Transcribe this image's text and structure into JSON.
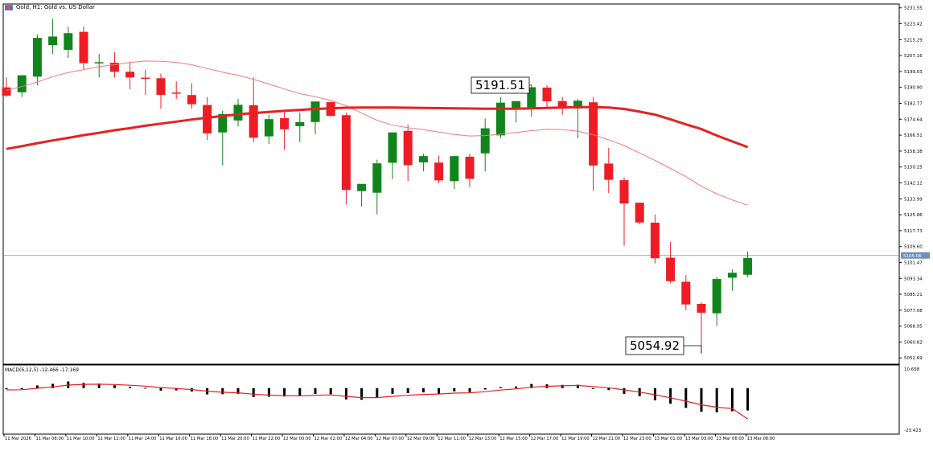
{
  "header": {
    "title": "Gold, H1: Gold vs. US Dollar"
  },
  "macd": {
    "title": "MACD(6,12,5) -12.466 -17.169",
    "axis_ticks": [
      "10.658",
      "-23.423"
    ]
  },
  "colors": {
    "bull": "#11851b",
    "bear": "#ee1c24",
    "ma_fast": "#e52222",
    "ma_slow": "#f07a7a",
    "macd_hist": "#000000",
    "macd_signal": "#e52222",
    "current_price_label_bg": "#6d8fb8"
  },
  "chart_data": [
    {
      "type": "candlestick",
      "title": "Gold, H1: Gold vs. US Dollar",
      "y_ticks": [
        "5231.55",
        "5223.42",
        "5215.29",
        "5207.16",
        "5199.03",
        "5190.90",
        "5182.77",
        "5174.64",
        "5166.51",
        "5158.38",
        "5150.25",
        "5142.12",
        "5133.99",
        "5125.86",
        "5117.73",
        "5109.60",
        "5101.47",
        "5093.34",
        "5085.21",
        "5077.08",
        "5068.95",
        "5060.82",
        "5052.69"
      ],
      "ylim": [
        5049.5,
        5233.5
      ],
      "current_price": "5105.06",
      "x_ticks": [
        "11 Mar 2026",
        "11 Mar 08:00",
        "11 Mar 10:00",
        "11 Mar 12:00",
        "11 Mar 14:00",
        "11 Mar 16:00",
        "11 Mar 18:00",
        "11 Mar 20:00",
        "11 Mar 22:00",
        "12 Mar 00:00",
        "12 Mar 02:00",
        "12 Mar 04:00",
        "12 Mar 07:00",
        "12 Mar 09:00",
        "12 Mar 11:00",
        "12 Mar 13:00",
        "12 Mar 15:00",
        "12 Mar 17:00",
        "12 Mar 19:00",
        "12 Mar 21:00",
        "12 Mar 23:00",
        "13 Mar 01:00",
        "13 Mar 03:00",
        "13 Mar 06:00",
        "13 Mar 08:00"
      ],
      "annotations": [
        {
          "label": "5191.51",
          "candle_index": 34
        },
        {
          "label": "5054.92",
          "candle_index": 45
        }
      ],
      "candles": [
        {
          "o": 5190.9,
          "h": 5196,
          "l": 5186,
          "c": 5186.7
        },
        {
          "o": 5188.4,
          "h": 5197,
          "l": 5186,
          "c": 5197.1
        },
        {
          "o": 5196.4,
          "h": 5218,
          "l": 5192,
          "c": 5216.2
        },
        {
          "o": 5212.5,
          "h": 5226,
          "l": 5208,
          "c": 5216.9
        },
        {
          "o": 5210.1,
          "h": 5222,
          "l": 5206,
          "c": 5218.6
        },
        {
          "o": 5219.3,
          "h": 5222,
          "l": 5200,
          "c": 5203.3
        },
        {
          "o": 5203.2,
          "h": 5208,
          "l": 5196,
          "c": 5203.8
        },
        {
          "o": 5203.5,
          "h": 5209,
          "l": 5196,
          "c": 5198.9
        },
        {
          "o": 5198.9,
          "h": 5204,
          "l": 5190,
          "c": 5196.0
        },
        {
          "o": 5195.9,
          "h": 5200,
          "l": 5187,
          "c": 5195.4
        },
        {
          "o": 5195.6,
          "h": 5198,
          "l": 5180,
          "c": 5187.1
        },
        {
          "o": 5188.3,
          "h": 5194,
          "l": 5185,
          "c": 5187.7
        },
        {
          "o": 5187.0,
          "h": 5193,
          "l": 5180,
          "c": 5182.3
        },
        {
          "o": 5181.9,
          "h": 5186,
          "l": 5164,
          "c": 5167.4
        },
        {
          "o": 5167.9,
          "h": 5179,
          "l": 5151,
          "c": 5177.3
        },
        {
          "o": 5174.0,
          "h": 5185,
          "l": 5171,
          "c": 5182.0
        },
        {
          "o": 5181.8,
          "h": 5196,
          "l": 5163,
          "c": 5165.2
        },
        {
          "o": 5165.9,
          "h": 5177,
          "l": 5162,
          "c": 5174.7
        },
        {
          "o": 5175.2,
          "h": 5179,
          "l": 5159,
          "c": 5169.5
        },
        {
          "o": 5171.1,
          "h": 5178,
          "l": 5163,
          "c": 5173.2
        },
        {
          "o": 5173.2,
          "h": 5182,
          "l": 5167,
          "c": 5183.7
        },
        {
          "o": 5183.4,
          "h": 5183,
          "l": 5176,
          "c": 5176.4
        },
        {
          "o": 5176.7,
          "h": 5178,
          "l": 5131,
          "c": 5138.5
        },
        {
          "o": 5137.9,
          "h": 5140,
          "l": 5130,
          "c": 5141.6
        },
        {
          "o": 5137.1,
          "h": 5154,
          "l": 5126,
          "c": 5152.1
        },
        {
          "o": 5152.4,
          "h": 5167,
          "l": 5144,
          "c": 5167.9
        },
        {
          "o": 5168.7,
          "h": 5172,
          "l": 5143,
          "c": 5151.2
        },
        {
          "o": 5152.6,
          "h": 5157,
          "l": 5148,
          "c": 5155.8
        },
        {
          "o": 5152.5,
          "h": 5156,
          "l": 5142,
          "c": 5143.4
        },
        {
          "o": 5143.0,
          "h": 5156,
          "l": 5139,
          "c": 5155.8
        },
        {
          "o": 5155.5,
          "h": 5157,
          "l": 5140,
          "c": 5144.2
        },
        {
          "o": 5157.2,
          "h": 5175,
          "l": 5148,
          "c": 5170.0
        },
        {
          "o": 5166.4,
          "h": 5186,
          "l": 5165,
          "c": 5183.1
        },
        {
          "o": 5180.4,
          "h": 5184,
          "l": 5173,
          "c": 5183.9
        },
        {
          "o": 5180.5,
          "h": 5191.5,
          "l": 5176,
          "c": 5191.0
        },
        {
          "o": 5190.8,
          "h": 5192,
          "l": 5181,
          "c": 5183.8
        },
        {
          "o": 5183.9,
          "h": 5186,
          "l": 5177,
          "c": 5180.6
        },
        {
          "o": 5180.1,
          "h": 5185,
          "l": 5165,
          "c": 5184.1
        },
        {
          "o": 5183.3,
          "h": 5186,
          "l": 5138,
          "c": 5151.0
        },
        {
          "o": 5152.0,
          "h": 5160,
          "l": 5137,
          "c": 5143.7
        },
        {
          "o": 5143.5,
          "h": 5145,
          "l": 5110,
          "c": 5131.6
        },
        {
          "o": 5132.0,
          "h": 5132,
          "l": 5121,
          "c": 5121.9
        },
        {
          "o": 5121.8,
          "h": 5126,
          "l": 5101,
          "c": 5103.6
        },
        {
          "o": 5103.9,
          "h": 5112,
          "l": 5091,
          "c": 5091.9
        },
        {
          "o": 5091.6,
          "h": 5095,
          "l": 5077,
          "c": 5080.0
        },
        {
          "o": 5080.3,
          "h": 5081,
          "l": 5054.92,
          "c": 5075.8
        },
        {
          "o": 5075.5,
          "h": 5094,
          "l": 5069,
          "c": 5093.0
        },
        {
          "o": 5093.7,
          "h": 5098,
          "l": 5087,
          "c": 5096.2
        },
        {
          "o": 5095.2,
          "h": 5107,
          "l": 5094,
          "c": 5103.8
        }
      ],
      "series": [
        {
          "values": [
            5159.5,
            5160.9,
            5162.4,
            5163.8,
            5165.1,
            5166.5,
            5167.7,
            5169.0,
            5170.1,
            5171.3,
            5172.4,
            5173.4,
            5174.5,
            5175.4,
            5176.3,
            5177.1,
            5177.8,
            5178.4,
            5178.9,
            5179.4,
            5179.9,
            5180.2,
            5180.5,
            5180.6,
            5180.6,
            5180.6,
            5180.5,
            5180.4,
            5180.3,
            5180.2,
            5180.1,
            5180.0,
            5180.0,
            5180.0,
            5180.2,
            5180.4,
            5180.6,
            5180.8,
            5180.8,
            5180.6,
            5179.9,
            5178.5,
            5177.0,
            5174.6,
            5172.0,
            5169.6,
            5166.3,
            5163.3,
            5160.4
          ]
        },
        {
          "values": [
            5189.4,
            5191.3,
            5193.6,
            5196.4,
            5198.5,
            5200.0,
            5201.5,
            5202.5,
            5203.6,
            5204.4,
            5204.2,
            5203.7,
            5202.5,
            5200.5,
            5198.7,
            5197.1,
            5195.0,
            5192.6,
            5190.1,
            5187.7,
            5186.2,
            5184.2,
            5181.5,
            5177.8,
            5174.1,
            5171.6,
            5170.3,
            5169.3,
            5168.1,
            5166.9,
            5166.1,
            5166.3,
            5167.0,
            5167.9,
            5168.8,
            5169.5,
            5169.3,
            5168.5,
            5166.7,
            5164.1,
            5161.2,
            5157.4,
            5153.6,
            5149.5,
            5145.3,
            5140.4,
            5136.5,
            5133.4,
            5130.7
          ]
        }
      ]
    },
    {
      "type": "bar",
      "title": "MACD(6,12,5) -12.466 -17.169",
      "ylim": [
        -23.423,
        10.658
      ],
      "values": [
        -0.6,
        -0.6,
        1.5,
        2.4,
        3.7,
        2.9,
        2.5,
        1.6,
        0.8,
        0.2,
        -1.4,
        -1.3,
        -1.9,
        -3.5,
        -3.4,
        -3.2,
        -5.0,
        -4.8,
        -4.7,
        -4.5,
        -3.3,
        -3.4,
        -6.3,
        -6.5,
        -5.4,
        -3.2,
        -2.8,
        -2.4,
        -3.1,
        -1.8,
        -2.2,
        -0.8,
        0.6,
        0.9,
        2.3,
        2.1,
        1.8,
        1.9,
        -0.5,
        -1.1,
        -3.2,
        -4.5,
        -6.8,
        -8.7,
        -11.0,
        -13.2,
        -13.5,
        -12.9,
        -12.466
      ],
      "signal": [
        -1.0,
        -0.9,
        -0.1,
        0.7,
        1.7,
        2.1,
        2.2,
        2.0,
        1.6,
        1.1,
        0.3,
        -0.2,
        -0.8,
        -1.7,
        -2.3,
        -2.6,
        -3.4,
        -3.9,
        -4.2,
        -4.3,
        -4.0,
        -3.8,
        -4.6,
        -5.3,
        -5.3,
        -4.6,
        -4.0,
        -3.5,
        -3.3,
        -2.8,
        -2.6,
        -2.0,
        -1.1,
        -0.4,
        0.5,
        1.0,
        1.3,
        1.5,
        0.8,
        0.2,
        -1.0,
        -2.2,
        -3.7,
        -5.4,
        -7.3,
        -9.3,
        -10.7,
        -11.4,
        -17.169
      ]
    }
  ]
}
